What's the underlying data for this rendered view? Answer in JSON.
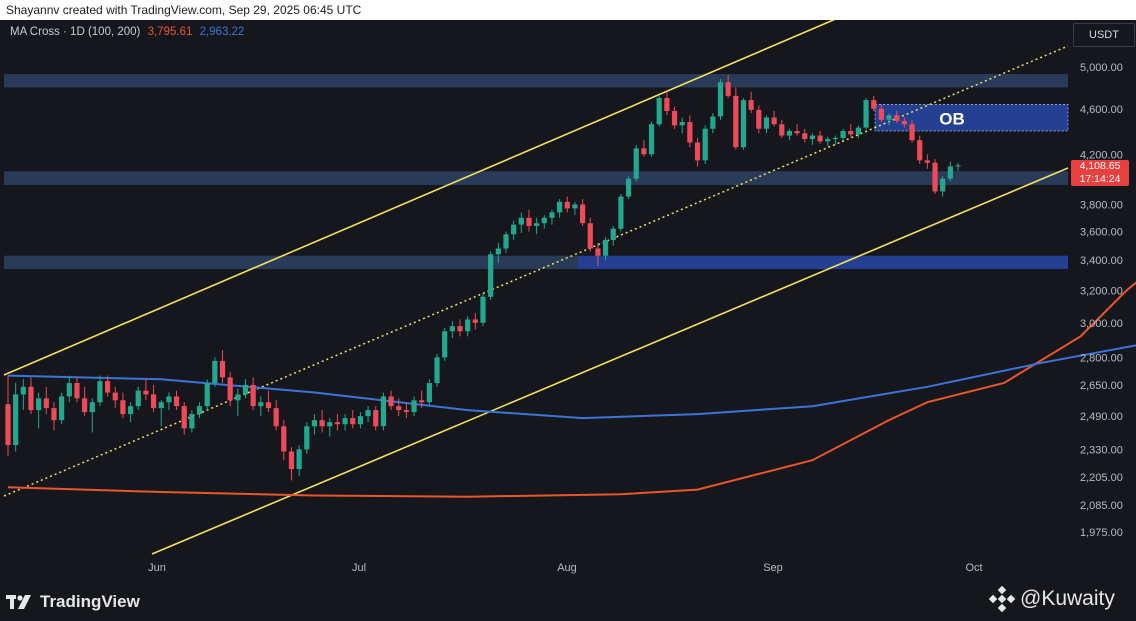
{
  "header": {
    "attribution": "Shayannv created with TradingView.com, Sep 29, 2025 06:45 UTC"
  },
  "indicator": {
    "label": "MA Cross · 1D (100, 200)",
    "ma100_value": "3,795.61",
    "ma200_value": "2,963.22"
  },
  "currency": "USDT",
  "current_price": {
    "price": "4,108.65",
    "countdown": "17:14:24"
  },
  "zone_label": "OB",
  "footer": {
    "brand": "TradingView",
    "watermark": "@Kuwaity"
  },
  "colors": {
    "background": "#15171c",
    "up_candle": "#22a88f",
    "down_candle": "#ef4a5a",
    "ma100": "#e8562a",
    "ma200": "#3b74d8",
    "channel": "#f2e25c",
    "zone": "#3a5a8c",
    "ob_zone": "#2848a8"
  },
  "chart_data": {
    "type": "candlestick",
    "title": "",
    "y_axis_ticks": [
      "5,000.00",
      "4,600.00",
      "4,200.00",
      "3,800.00",
      "3,600.00",
      "3,400.00",
      "3,200.00",
      "3,000.00",
      "2,800.00",
      "2,650.00",
      "2,490.00",
      "2,330.00",
      "2,205.00",
      "2,085.00",
      "1,975.00"
    ],
    "y_axis_scale": "log",
    "x_axis_ticks": [
      "Jun",
      "Jul",
      "Aug",
      "Sep",
      "Oct"
    ],
    "ylim": [
      1920,
      5300
    ],
    "x_dates": [
      "2025-05-01",
      "2025-10-08"
    ],
    "series": [
      {
        "name": "MA 100",
        "values": [
          [
            0,
            2160
          ],
          [
            20,
            2140
          ],
          [
            40,
            2125
          ],
          [
            60,
            2120
          ],
          [
            80,
            2130
          ],
          [
            90,
            2150
          ],
          [
            105,
            2280
          ],
          [
            115,
            2470
          ],
          [
            120,
            2560
          ],
          [
            130,
            2660
          ],
          [
            140,
            2920
          ],
          [
            146,
            3200
          ],
          [
            152,
            3450
          ],
          [
            160,
            3680
          ],
          [
            165,
            3795
          ]
        ]
      },
      {
        "name": "MA 200",
        "values": [
          [
            0,
            2700
          ],
          [
            20,
            2680
          ],
          [
            40,
            2610
          ],
          [
            60,
            2520
          ],
          [
            75,
            2480
          ],
          [
            90,
            2500
          ],
          [
            105,
            2540
          ],
          [
            120,
            2640
          ],
          [
            135,
            2770
          ],
          [
            150,
            2890
          ],
          [
            160,
            2963
          ]
        ]
      }
    ],
    "candles": [
      [
        0,
        2550,
        2700,
        2300,
        2350
      ],
      [
        1,
        2350,
        2660,
        2320,
        2600
      ],
      [
        2,
        2600,
        2680,
        2520,
        2640
      ],
      [
        3,
        2640,
        2690,
        2500,
        2520
      ],
      [
        4,
        2520,
        2610,
        2430,
        2580
      ],
      [
        5,
        2580,
        2640,
        2500,
        2530
      ],
      [
        6,
        2530,
        2560,
        2420,
        2470
      ],
      [
        7,
        2470,
        2610,
        2450,
        2590
      ],
      [
        8,
        2590,
        2700,
        2560,
        2660
      ],
      [
        9,
        2660,
        2690,
        2560,
        2580
      ],
      [
        10,
        2580,
        2640,
        2490,
        2510
      ],
      [
        11,
        2510,
        2580,
        2410,
        2560
      ],
      [
        12,
        2560,
        2700,
        2540,
        2670
      ],
      [
        13,
        2670,
        2700,
        2590,
        2610
      ],
      [
        14,
        2610,
        2640,
        2530,
        2570
      ],
      [
        15,
        2570,
        2610,
        2480,
        2500
      ],
      [
        16,
        2500,
        2560,
        2460,
        2540
      ],
      [
        17,
        2540,
        2640,
        2520,
        2620
      ],
      [
        18,
        2620,
        2680,
        2570,
        2600
      ],
      [
        19,
        2600,
        2650,
        2510,
        2530
      ],
      [
        20,
        2530,
        2570,
        2440,
        2560
      ],
      [
        21,
        2560,
        2610,
        2520,
        2590
      ],
      [
        22,
        2590,
        2620,
        2520,
        2540
      ],
      [
        23,
        2540,
        2560,
        2400,
        2430
      ],
      [
        24,
        2430,
        2520,
        2410,
        2500
      ],
      [
        25,
        2500,
        2560,
        2480,
        2540
      ],
      [
        26,
        2540,
        2680,
        2520,
        2660
      ],
      [
        27,
        2660,
        2800,
        2640,
        2780
      ],
      [
        28,
        2780,
        2840,
        2660,
        2690
      ],
      [
        29,
        2690,
        2720,
        2540,
        2570
      ],
      [
        30,
        2570,
        2630,
        2490,
        2600
      ],
      [
        31,
        2600,
        2680,
        2580,
        2650
      ],
      [
        32,
        2650,
        2690,
        2520,
        2540
      ],
      [
        33,
        2540,
        2590,
        2490,
        2560
      ],
      [
        34,
        2560,
        2620,
        2510,
        2530
      ],
      [
        35,
        2530,
        2570,
        2420,
        2440
      ],
      [
        36,
        2440,
        2470,
        2280,
        2320
      ],
      [
        37,
        2320,
        2340,
        2190,
        2240
      ],
      [
        38,
        2240,
        2350,
        2210,
        2330
      ],
      [
        39,
        2330,
        2460,
        2310,
        2440
      ],
      [
        40,
        2440,
        2500,
        2400,
        2470
      ],
      [
        41,
        2470,
        2520,
        2410,
        2440
      ],
      [
        42,
        2440,
        2480,
        2390,
        2460
      ],
      [
        43,
        2460,
        2500,
        2420,
        2450
      ],
      [
        44,
        2450,
        2500,
        2420,
        2480
      ],
      [
        45,
        2480,
        2520,
        2430,
        2450
      ],
      [
        46,
        2450,
        2510,
        2430,
        2490
      ],
      [
        47,
        2490,
        2540,
        2460,
        2520
      ],
      [
        48,
        2520,
        2540,
        2420,
        2440
      ],
      [
        49,
        2440,
        2610,
        2420,
        2590
      ],
      [
        50,
        2590,
        2620,
        2520,
        2540
      ],
      [
        51,
        2540,
        2580,
        2490,
        2520
      ],
      [
        52,
        2520,
        2560,
        2480,
        2510
      ],
      [
        53,
        2510,
        2590,
        2490,
        2570
      ],
      [
        54,
        2570,
        2620,
        2530,
        2560
      ],
      [
        55,
        2560,
        2680,
        2540,
        2660
      ],
      [
        56,
        2660,
        2820,
        2640,
        2800
      ],
      [
        57,
        2800,
        2970,
        2780,
        2950
      ],
      [
        58,
        2950,
        3010,
        2910,
        2980
      ],
      [
        59,
        2980,
        3020,
        2920,
        2950
      ],
      [
        60,
        2950,
        3040,
        2920,
        3020
      ],
      [
        61,
        3020,
        3060,
        2960,
        3000
      ],
      [
        62,
        3000,
        3180,
        2980,
        3160
      ],
      [
        63,
        3160,
        3460,
        3140,
        3440
      ],
      [
        64,
        3440,
        3520,
        3380,
        3480
      ],
      [
        65,
        3480,
        3600,
        3450,
        3580
      ],
      [
        66,
        3580,
        3680,
        3540,
        3650
      ],
      [
        67,
        3650,
        3740,
        3590,
        3700
      ],
      [
        68,
        3700,
        3760,
        3600,
        3640
      ],
      [
        69,
        3640,
        3700,
        3580,
        3660
      ],
      [
        70,
        3660,
        3720,
        3620,
        3700
      ],
      [
        71,
        3700,
        3760,
        3650,
        3740
      ],
      [
        72,
        3740,
        3840,
        3700,
        3820
      ],
      [
        73,
        3820,
        3860,
        3740,
        3770
      ],
      [
        74,
        3770,
        3820,
        3720,
        3800
      ],
      [
        75,
        3800,
        3840,
        3640,
        3660
      ],
      [
        76,
        3660,
        3700,
        3460,
        3480
      ],
      [
        77,
        3480,
        3520,
        3360,
        3430
      ],
      [
        78,
        3430,
        3560,
        3400,
        3540
      ],
      [
        79,
        3540,
        3640,
        3500,
        3620
      ],
      [
        80,
        3620,
        3880,
        3600,
        3860
      ],
      [
        81,
        3860,
        4020,
        3840,
        4000
      ],
      [
        82,
        4000,
        4280,
        3980,
        4250
      ],
      [
        83,
        4250,
        4320,
        4180,
        4200
      ],
      [
        84,
        4200,
        4480,
        4180,
        4460
      ],
      [
        85,
        4460,
        4720,
        4440,
        4700
      ],
      [
        86,
        4700,
        4760,
        4540,
        4580
      ],
      [
        87,
        4580,
        4620,
        4420,
        4450
      ],
      [
        88,
        4450,
        4520,
        4380,
        4480
      ],
      [
        89,
        4480,
        4540,
        4260,
        4300
      ],
      [
        90,
        4300,
        4340,
        4100,
        4150
      ],
      [
        91,
        4150,
        4450,
        4120,
        4420
      ],
      [
        92,
        4420,
        4560,
        4380,
        4530
      ],
      [
        93,
        4530,
        4880,
        4500,
        4850
      ],
      [
        94,
        4850,
        4920,
        4700,
        4720
      ],
      [
        95,
        4720,
        4800,
        4240,
        4260
      ],
      [
        96,
        4260,
        4700,
        4240,
        4680
      ],
      [
        97,
        4680,
        4760,
        4560,
        4590
      ],
      [
        98,
        4590,
        4630,
        4380,
        4420
      ],
      [
        99,
        4420,
        4540,
        4380,
        4520
      ],
      [
        100,
        4520,
        4580,
        4440,
        4460
      ],
      [
        101,
        4460,
        4500,
        4340,
        4360
      ],
      [
        102,
        4360,
        4420,
        4320,
        4400
      ],
      [
        103,
        4400,
        4460,
        4360,
        4380
      ],
      [
        104,
        4380,
        4420,
        4300,
        4330
      ],
      [
        105,
        4330,
        4380,
        4280,
        4360
      ],
      [
        106,
        4360,
        4400,
        4290,
        4310
      ],
      [
        107,
        4310,
        4350,
        4270,
        4330
      ],
      [
        108,
        4330,
        4360,
        4280,
        4340
      ],
      [
        109,
        4340,
        4420,
        4320,
        4400
      ],
      [
        110,
        4400,
        4460,
        4350,
        4370
      ],
      [
        111,
        4370,
        4450,
        4340,
        4430
      ],
      [
        112,
        4430,
        4700,
        4410,
        4680
      ],
      [
        113,
        4680,
        4720,
        4580,
        4600
      ],
      [
        114,
        4600,
        4640,
        4480,
        4500
      ],
      [
        115,
        4500,
        4560,
        4450,
        4540
      ],
      [
        116,
        4540,
        4580,
        4470,
        4490
      ],
      [
        117,
        4490,
        4520,
        4430,
        4460
      ],
      [
        118,
        4460,
        4500,
        4300,
        4320
      ],
      [
        119,
        4320,
        4360,
        4120,
        4150
      ],
      [
        120,
        4150,
        4200,
        4080,
        4130
      ],
      [
        121,
        4130,
        4160,
        3880,
        3900
      ],
      [
        122,
        3900,
        4020,
        3860,
        4000
      ],
      [
        123,
        4000,
        4140,
        3980,
        4100
      ],
      [
        124,
        4100,
        4130,
        4060,
        4108
      ]
    ]
  }
}
